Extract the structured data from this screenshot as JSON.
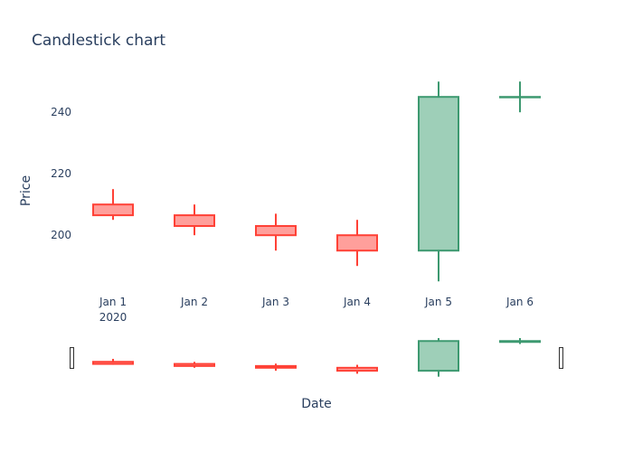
{
  "chart_data": {
    "type": "candlestick",
    "title": "Candlestick chart",
    "xlabel": "Date",
    "ylabel": "Price",
    "ylim": [
      183,
      253
    ],
    "yticks": [
      200,
      220,
      240
    ],
    "year_label": "2020",
    "categories": [
      "Jan 1",
      "Jan 2",
      "Jan 3",
      "Jan 4",
      "Jan 5",
      "Jan 6"
    ],
    "candles": [
      {
        "date": "Jan 1",
        "open": 210,
        "high": 215,
        "low": 205,
        "close": 206.5
      },
      {
        "date": "Jan 2",
        "open": 206.5,
        "high": 210,
        "low": 200,
        "close": 203
      },
      {
        "date": "Jan 3",
        "open": 203,
        "high": 207,
        "low": 195,
        "close": 200
      },
      {
        "date": "Jan 4",
        "open": 200,
        "high": 205,
        "low": 190,
        "close": 195
      },
      {
        "date": "Jan 5",
        "open": 195,
        "high": 250,
        "low": 185,
        "close": 245
      },
      {
        "date": "Jan 6",
        "open": 245,
        "high": 250,
        "low": 240,
        "close": 245
      }
    ],
    "colors": {
      "increasing_line": "#3d9970",
      "increasing_fill": "#9ecfb8",
      "decreasing_line": "#ff4136",
      "decreasing_fill": "#ff9f9b",
      "text": "#2a3f5f"
    },
    "rangeslider": true,
    "grid": false
  }
}
